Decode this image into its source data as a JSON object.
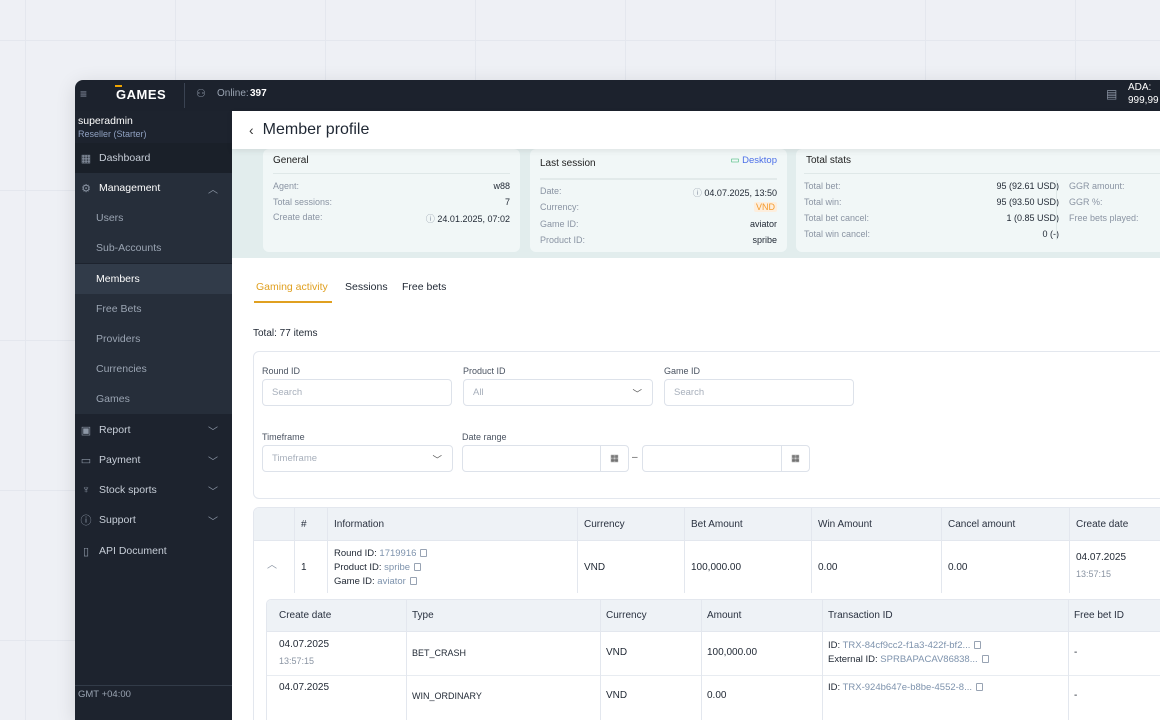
{
  "topbar": {
    "logo": "GAMES",
    "online_label": "Online:",
    "online_count": "397",
    "balance_label": "ADA:",
    "balance_value": "999,99"
  },
  "user": {
    "name": "superadmin",
    "role": "Reseller (Starter)"
  },
  "sidebar": {
    "items": [
      {
        "label": "Dashboard",
        "icon": "dashboard-icon"
      },
      {
        "label": "Management",
        "icon": "management-icon",
        "expanded": true,
        "children": [
          "Users",
          "Sub-Accounts",
          "Members",
          "Free Bets",
          "Providers",
          "Currencies",
          "Games"
        ],
        "active_child": "Members"
      },
      {
        "label": "Report",
        "icon": "report-icon"
      },
      {
        "label": "Payment",
        "icon": "wallet-icon"
      },
      {
        "label": "Stock sports",
        "icon": "trophy-icon"
      },
      {
        "label": "Support",
        "icon": "info-icon"
      },
      {
        "label": "API Document",
        "icon": "document-icon"
      }
    ],
    "timezone": "GMT +04:00"
  },
  "header": {
    "title": "Member profile"
  },
  "general": {
    "title": "General",
    "agent_label": "Agent:",
    "agent": "w88",
    "sessions_label": "Total sessions:",
    "sessions": "7",
    "create_label": "Create date:",
    "create_date": "24.01.2025, 07:02"
  },
  "last_session": {
    "title": "Last session",
    "device": "Desktop",
    "date_label": "Date:",
    "date": "04.07.2025, 13:50",
    "currency_label": "Currency:",
    "currency": "VND",
    "game_label": "Game ID:",
    "game": "aviator",
    "product_label": "Product ID:",
    "product": "spribe"
  },
  "total_stats": {
    "title": "Total stats",
    "bet_label": "Total bet:",
    "bet": "95 (92.61 USD)",
    "win_label": "Total win:",
    "win": "95 (93.50 USD)",
    "bet_cancel_label": "Total bet cancel:",
    "bet_cancel": "1 (0.85 USD)",
    "win_cancel_label": "Total win cancel:",
    "win_cancel": "0 (-)",
    "ggr_amount_label": "GGR amount:",
    "ggr_pct_label": "GGR %:",
    "free_bets_label": "Free bets played:"
  },
  "tabs": [
    "Gaming activity",
    "Sessions",
    "Free bets"
  ],
  "total": "Total: 77 items",
  "filters": {
    "round_label": "Round ID",
    "round_ph": "Search",
    "product_label": "Product ID",
    "product_ph": "All",
    "game_label": "Game ID",
    "game_ph": "Search",
    "timeframe_label": "Timeframe",
    "timeframe_ph": "Timeframe",
    "date_label": "Date range",
    "date_sep": "–"
  },
  "table": {
    "headers": [
      "#",
      "Information",
      "Currency",
      "Bet Amount",
      "Win Amount",
      "Cancel amount",
      "Create date"
    ],
    "rows": [
      {
        "num": "1",
        "round_label": "Round ID:",
        "round": "1719916",
        "product_label": "Product ID:",
        "product": "spribe",
        "game_label": "Game ID:",
        "game": "aviator",
        "currency": "VND",
        "bet": "100,000.00",
        "win": "0.00",
        "cancel": "0.00",
        "date": "04.07.2025",
        "time": "13:57:15"
      }
    ]
  },
  "subtable": {
    "headers": [
      "Create date",
      "Type",
      "Currency",
      "Amount",
      "Transaction ID",
      "Free bet ID"
    ],
    "rows": [
      {
        "date": "04.07.2025",
        "time": "13:57:15",
        "type": "BET_CRASH",
        "currency": "VND",
        "amount": "100,000.00",
        "id_label": "ID:",
        "id": "TRX-84cf9cc2-f1a3-422f-bf2...",
        "ext_label": "External ID:",
        "ext": "SPRBAPACAV86838...",
        "free": "-"
      },
      {
        "date": "04.07.2025",
        "type": "WIN_ORDINARY",
        "currency": "VND",
        "amount": "0.00",
        "id_label": "ID:",
        "id": "TRX-924b647e-b8be-4552-8...",
        "free": "-"
      }
    ]
  }
}
